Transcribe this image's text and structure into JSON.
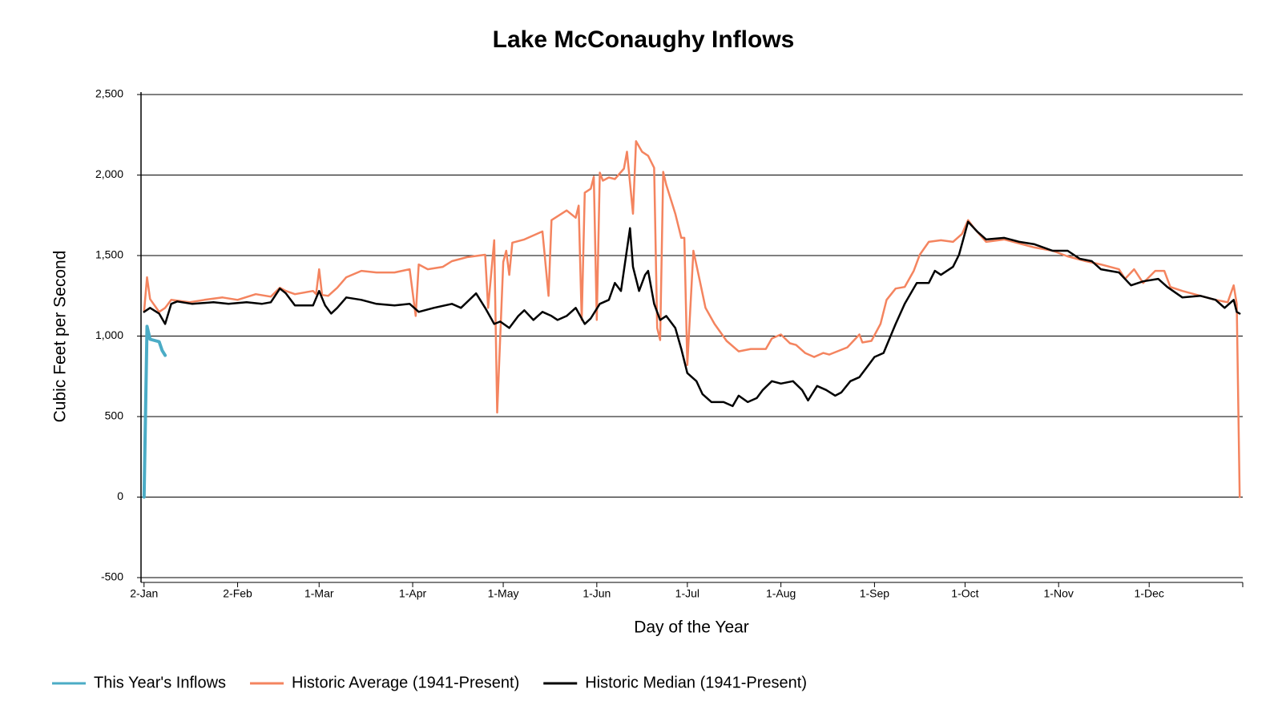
{
  "chart_data": {
    "type": "line",
    "title": "Lake McConaughy Inflows",
    "x_label": "Day of the Year",
    "y_label": "Cubic Feet per Second",
    "xlim": [
      1,
      366
    ],
    "ylim": [
      -500,
      2500
    ],
    "xticks": [
      {
        "value": 2,
        "label": "2-Jan"
      },
      {
        "value": 33,
        "label": "2-Feb"
      },
      {
        "value": 60,
        "label": "1-Mar"
      },
      {
        "value": 91,
        "label": "1-Apr"
      },
      {
        "value": 121,
        "label": "1-May"
      },
      {
        "value": 152,
        "label": "1-Jun"
      },
      {
        "value": 182,
        "label": "1-Jul"
      },
      {
        "value": 213,
        "label": "1-Aug"
      },
      {
        "value": 244,
        "label": "1-Sep"
      },
      {
        "value": 274,
        "label": "1-Oct"
      },
      {
        "value": 305,
        "label": "1-Nov"
      },
      {
        "value": 335,
        "label": "1-Dec"
      }
    ],
    "yticks": [
      -500,
      0,
      500,
      {
        "value": 1000,
        "label": "1,000"
      },
      {
        "value": 1500,
        "label": "1,500"
      },
      {
        "value": 2000,
        "label": "2,000"
      },
      {
        "value": 2500,
        "label": "2,500"
      }
    ],
    "grid": true,
    "legend": "bottom",
    "series": [
      {
        "name": "This Year's Inflows",
        "color": "#4bacc6",
        "width": 4,
        "x": [
          2,
          3,
          4,
          5,
          6,
          7,
          8,
          9
        ],
        "values": [
          0,
          1060,
          980,
          975,
          970,
          965,
          910,
          880
        ]
      },
      {
        "name": "Historic Average (1941-Present)",
        "color": "#f4845f",
        "width": 2.5,
        "x": [
          2,
          3,
          4,
          7,
          9,
          11,
          17,
          22,
          28,
          33,
          39,
          44,
          47,
          49,
          52,
          58,
          59,
          60,
          61,
          63,
          66,
          69,
          74,
          79,
          85,
          90,
          92,
          93,
          96,
          101,
          104,
          109,
          115,
          116,
          118,
          119,
          121,
          122,
          123,
          124,
          128,
          134,
          136,
          137,
          142,
          145,
          146,
          147,
          148,
          150,
          151,
          152,
          153,
          154,
          156,
          158,
          161,
          162,
          164,
          165,
          167,
          169,
          171,
          172,
          173,
          174,
          175,
          178,
          180,
          181,
          182,
          184,
          186,
          188,
          191,
          195,
          199,
          203,
          208,
          210,
          213,
          216,
          218,
          221,
          224,
          227,
          229,
          235,
          239,
          240,
          243,
          246,
          248,
          251,
          254,
          257,
          259,
          262,
          266,
          270,
          273,
          275,
          277,
          281,
          287,
          292,
          297,
          303,
          308,
          314,
          319,
          325,
          327,
          330,
          333,
          337,
          340,
          342,
          346,
          352,
          357,
          361,
          363,
          364,
          365
        ],
        "values": [
          1150,
          1365,
          1230,
          1150,
          1175,
          1225,
          1210,
          1225,
          1240,
          1225,
          1260,
          1245,
          1300,
          1280,
          1260,
          1280,
          1260,
          1415,
          1255,
          1250,
          1300,
          1365,
          1405,
          1395,
          1395,
          1415,
          1125,
          1445,
          1415,
          1430,
          1465,
          1490,
          1505,
          1175,
          1595,
          525,
          1460,
          1530,
          1380,
          1580,
          1600,
          1650,
          1250,
          1720,
          1780,
          1735,
          1810,
          1100,
          1890,
          1915,
          1990,
          1100,
          2015,
          1965,
          1985,
          1975,
          2040,
          2145,
          1760,
          2210,
          2145,
          2120,
          2045,
          1050,
          975,
          2020,
          1940,
          1760,
          1610,
          1610,
          820,
          1530,
          1355,
          1175,
          1075,
          970,
          905,
          920,
          920,
          985,
          1010,
          955,
          945,
          895,
          870,
          895,
          885,
          930,
          1010,
          960,
          970,
          1075,
          1225,
          1295,
          1305,
          1405,
          1505,
          1585,
          1595,
          1585,
          1635,
          1720,
          1670,
          1585,
          1600,
          1575,
          1550,
          1530,
          1495,
          1465,
          1445,
          1415,
          1355,
          1415,
          1330,
          1405,
          1405,
          1305,
          1280,
          1250,
          1225,
          1210,
          1315,
          1200,
          0
        ]
      },
      {
        "name": "Historic Median (1941-Present)",
        "color": "#000000",
        "width": 2.5,
        "x": [
          2,
          4,
          7,
          9,
          11,
          13,
          18,
          25,
          30,
          36,
          41,
          44,
          47,
          49,
          52,
          58,
          60,
          62,
          64,
          66,
          69,
          74,
          79,
          85,
          90,
          93,
          98,
          104,
          107,
          112,
          115,
          118,
          120,
          123,
          126,
          128,
          131,
          134,
          137,
          139,
          142,
          145,
          148,
          150,
          153,
          156,
          158,
          160,
          163,
          164,
          166,
          168,
          169,
          171,
          173,
          175,
          178,
          180,
          182,
          185,
          187,
          190,
          194,
          197,
          199,
          202,
          205,
          207,
          210,
          213,
          217,
          220,
          222,
          225,
          228,
          231,
          233,
          236,
          239,
          242,
          244,
          247,
          251,
          254,
          258,
          262,
          264,
          266,
          270,
          272,
          275,
          278,
          281,
          287,
          292,
          297,
          303,
          308,
          312,
          316,
          319,
          325,
          329,
          333,
          338,
          341,
          346,
          352,
          357,
          360,
          363,
          364,
          365
        ],
        "values": [
          1150,
          1175,
          1140,
          1075,
          1200,
          1215,
          1200,
          1210,
          1200,
          1210,
          1200,
          1210,
          1295,
          1265,
          1190,
          1190,
          1280,
          1190,
          1140,
          1175,
          1240,
          1225,
          1200,
          1190,
          1200,
          1150,
          1175,
          1200,
          1175,
          1265,
          1175,
          1075,
          1090,
          1050,
          1125,
          1160,
          1100,
          1150,
          1125,
          1100,
          1125,
          1175,
          1075,
          1110,
          1200,
          1225,
          1330,
          1280,
          1670,
          1430,
          1280,
          1380,
          1405,
          1200,
          1100,
          1125,
          1050,
          920,
          770,
          720,
          640,
          590,
          590,
          565,
          630,
          590,
          615,
          665,
          720,
          705,
          720,
          665,
          600,
          690,
          665,
          630,
          650,
          720,
          745,
          820,
          870,
          895,
          1075,
          1200,
          1330,
          1330,
          1405,
          1380,
          1430,
          1505,
          1710,
          1650,
          1600,
          1610,
          1585,
          1570,
          1530,
          1530,
          1480,
          1465,
          1415,
          1395,
          1315,
          1340,
          1355,
          1305,
          1240,
          1250,
          1225,
          1175,
          1225,
          1150,
          1140
        ]
      }
    ]
  }
}
